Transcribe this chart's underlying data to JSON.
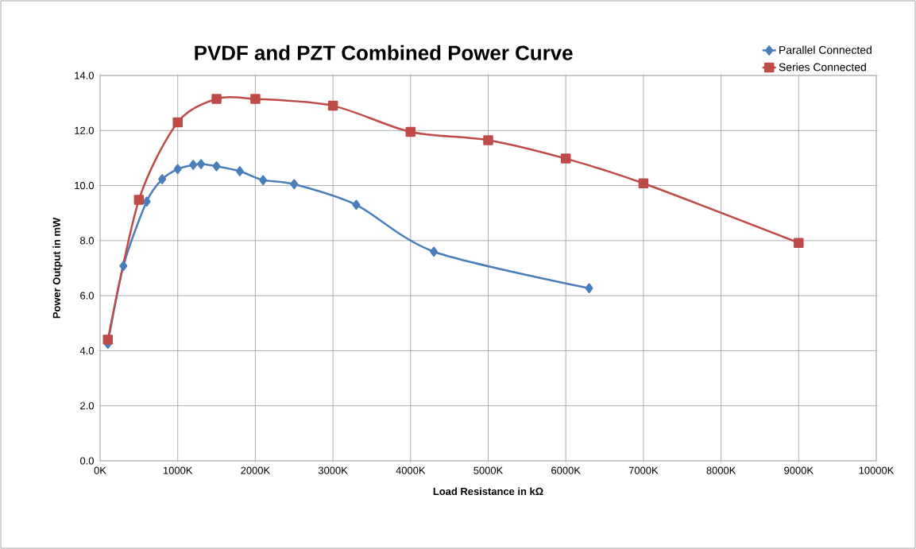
{
  "chart_data": {
    "type": "line",
    "title": "PVDF and PZT Combined Power Curve",
    "xlabel": "Load Resistance in kΩ",
    "ylabel": "Power Output in mW",
    "xlim": [
      0,
      10000
    ],
    "ylim": [
      0,
      14
    ],
    "xticks": [
      {
        "value": 0,
        "label": "0K"
      },
      {
        "value": 1000,
        "label": "1000K"
      },
      {
        "value": 2000,
        "label": "2000K"
      },
      {
        "value": 3000,
        "label": "3000K"
      },
      {
        "value": 4000,
        "label": "4000K"
      },
      {
        "value": 5000,
        "label": "5000K"
      },
      {
        "value": 6000,
        "label": "6000K"
      },
      {
        "value": 7000,
        "label": "7000K"
      },
      {
        "value": 8000,
        "label": "8000K"
      },
      {
        "value": 9000,
        "label": "9000K"
      },
      {
        "value": 10000,
        "label": "10000K"
      }
    ],
    "yticks": [
      {
        "value": 0,
        "label": "0.0"
      },
      {
        "value": 2,
        "label": "2.0"
      },
      {
        "value": 4,
        "label": "4.0"
      },
      {
        "value": 6,
        "label": "6.0"
      },
      {
        "value": 8,
        "label": "8.0"
      },
      {
        "value": 10,
        "label": "10.0"
      },
      {
        "value": 12,
        "label": "12.0"
      },
      {
        "value": 14,
        "label": "14.0"
      }
    ],
    "grid": true,
    "legend": "top right",
    "series": [
      {
        "name": "Parallel Connected",
        "color": "#4a7ebb",
        "marker": "diamond",
        "x": [
          100,
          300,
          600,
          800,
          1000,
          1200,
          1300,
          1500,
          1800,
          2100,
          2500,
          3300,
          4300,
          6300
        ],
        "values": [
          4.25,
          7.08,
          9.42,
          10.23,
          10.6,
          10.75,
          10.78,
          10.7,
          10.52,
          10.2,
          10.05,
          9.3,
          7.6,
          6.27
        ]
      },
      {
        "name": "Series Connected",
        "color": "#be4b48",
        "marker": "square",
        "x": [
          100,
          500,
          1000,
          1500,
          2000,
          3000,
          4000,
          5000,
          6000,
          7000,
          9000
        ],
        "values": [
          4.4,
          9.48,
          12.3,
          13.15,
          13.15,
          12.9,
          11.95,
          11.65,
          10.98,
          10.08,
          7.92
        ]
      }
    ]
  }
}
